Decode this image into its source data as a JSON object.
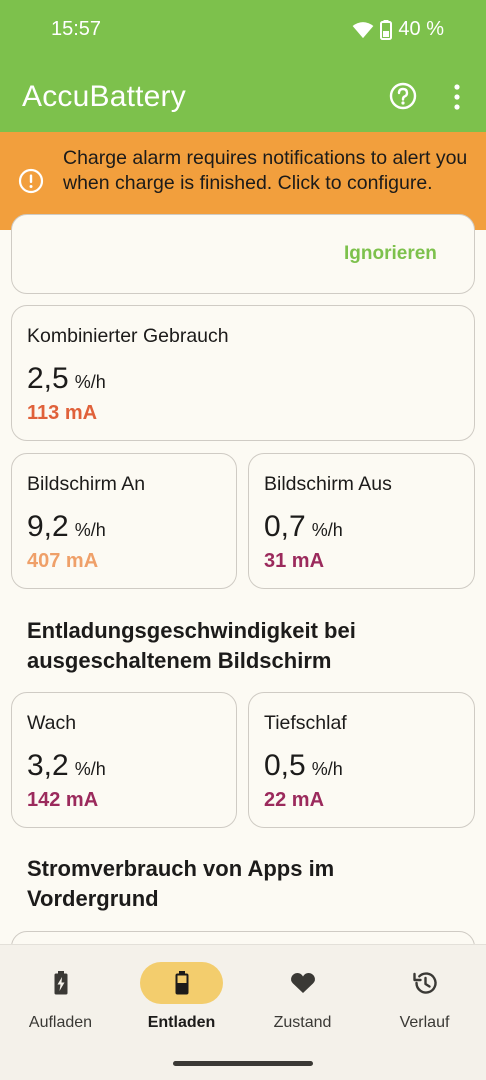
{
  "status_bar": {
    "time": "15:57",
    "battery_text": "40 %"
  },
  "app": {
    "title": "AccuBattery"
  },
  "banner": {
    "text": "Charge alarm requires notifications to alert you when charge is finished. Click to configure."
  },
  "top_card": {
    "ignore_label": "Ignorieren"
  },
  "combined": {
    "label": "Kombinierter Gebrauch",
    "value": "2,5",
    "unit": "%/h",
    "ma": "113 mA"
  },
  "screen_on": {
    "label": "Bildschirm An",
    "value": "9,2",
    "unit": "%/h",
    "ma": "407 mA"
  },
  "screen_off": {
    "label": "Bildschirm Aus",
    "value": "0,7",
    "unit": "%/h",
    "ma": "31 mA"
  },
  "section_off": {
    "title_line1": "Entladungsgeschwindigkeit bei",
    "title_line2": "ausgeschaltenem Bildschirm"
  },
  "awake": {
    "label": "Wach",
    "value": "3,2",
    "unit": "%/h",
    "ma": "142 mA"
  },
  "deep_sleep": {
    "label": "Tiefschlaf",
    "value": "0,5",
    "unit": "%/h",
    "ma": "22 mA"
  },
  "section_apps": {
    "title_line1": "Stromverbrauch von Apps im",
    "title_line2": "Vordergrund"
  },
  "nav": {
    "items": [
      {
        "label": "Aufladen",
        "icon": "battery-charging-icon"
      },
      {
        "label": "Entladen",
        "icon": "battery-discharging-icon",
        "active": true
      },
      {
        "label": "Zustand",
        "icon": "heart-icon"
      },
      {
        "label": "Verlauf",
        "icon": "history-icon"
      }
    ]
  },
  "colors": {
    "accent_green": "#7dc14c",
    "banner_orange": "#f29f3d",
    "combined_ma": "#e0613a",
    "screen_on_ma": "#efa069",
    "magenta_ma": "#9b2a5c",
    "nav_active_pill": "#f3cd6d"
  }
}
